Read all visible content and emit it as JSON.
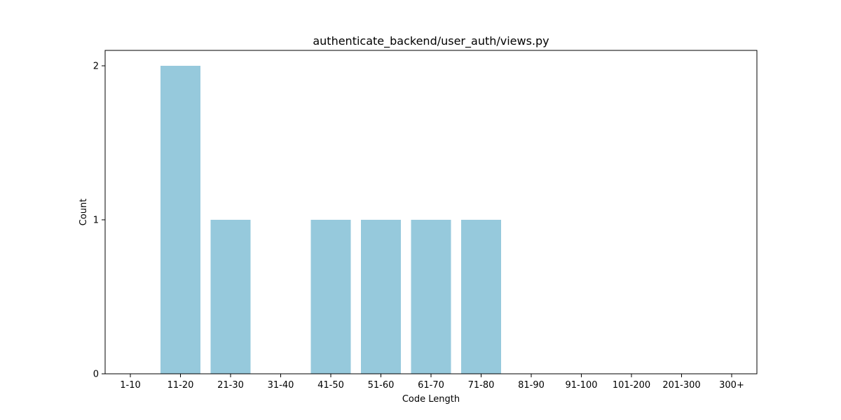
{
  "chart_data": {
    "type": "bar",
    "title": "authenticate_backend/user_auth/views.py",
    "xlabel": "Code Length",
    "ylabel": "Count",
    "categories": [
      "1-10",
      "11-20",
      "21-30",
      "31-40",
      "41-50",
      "51-60",
      "61-70",
      "71-80",
      "81-90",
      "91-100",
      "101-200",
      "201-300",
      "300+"
    ],
    "values": [
      0,
      2,
      1,
      0,
      1,
      1,
      1,
      1,
      0,
      0,
      0,
      0,
      0
    ],
    "ylim": [
      0,
      2.1
    ],
    "yticks": [
      0,
      1,
      2
    ],
    "bar_color": "#96c9dc",
    "grid": false,
    "legend": "none"
  }
}
